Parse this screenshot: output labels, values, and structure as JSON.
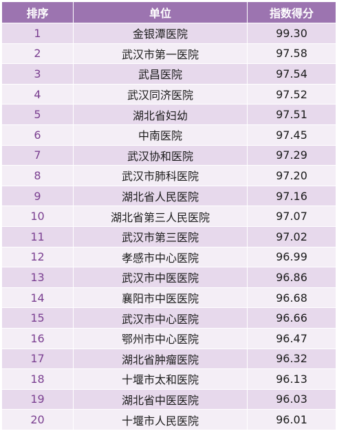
{
  "table": {
    "headers": {
      "rank": "排序",
      "unit": "单位",
      "score": "指数得分"
    },
    "rows": [
      {
        "rank": "1",
        "unit": "金银潭医院",
        "score": "99.30"
      },
      {
        "rank": "2",
        "unit": "武汉市第一医院",
        "score": "97.58"
      },
      {
        "rank": "3",
        "unit": "武昌医院",
        "score": "97.54"
      },
      {
        "rank": "4",
        "unit": "武汉同济医院",
        "score": "97.52"
      },
      {
        "rank": "5",
        "unit": "湖北省妇幼",
        "score": "97.51"
      },
      {
        "rank": "6",
        "unit": "中南医院",
        "score": "97.45"
      },
      {
        "rank": "7",
        "unit": "武汉协和医院",
        "score": "97.29"
      },
      {
        "rank": "8",
        "unit": "武汉市肺科医院",
        "score": "97.20"
      },
      {
        "rank": "9",
        "unit": "湖北省人民医院",
        "score": "97.16"
      },
      {
        "rank": "10",
        "unit": "湖北省第三人民医院",
        "score": "97.07"
      },
      {
        "rank": "11",
        "unit": "武汉市第三医院",
        "score": "97.02"
      },
      {
        "rank": "12",
        "unit": "孝感市中心医院",
        "score": "96.99"
      },
      {
        "rank": "13",
        "unit": "武汉市中医医院",
        "score": "96.86"
      },
      {
        "rank": "14",
        "unit": "襄阳市中医医院",
        "score": "96.68"
      },
      {
        "rank": "15",
        "unit": "武汉市中心医院",
        "score": "96.66"
      },
      {
        "rank": "16",
        "unit": "鄂州市中心医院",
        "score": "96.47"
      },
      {
        "rank": "17",
        "unit": "湖北省肿瘤医院",
        "score": "96.32"
      },
      {
        "rank": "18",
        "unit": "十堰市太和医院",
        "score": "96.13"
      },
      {
        "rank": "19",
        "unit": "湖北省中医医院",
        "score": "96.03"
      },
      {
        "rank": "20",
        "unit": "十堰市人民医院",
        "score": "96.01"
      }
    ]
  },
  "colors": {
    "header_bg": "#9c74b0",
    "row_odd": "#e7d9ec",
    "row_even": "#f4eef6",
    "rank_text": "#7a3f90"
  }
}
